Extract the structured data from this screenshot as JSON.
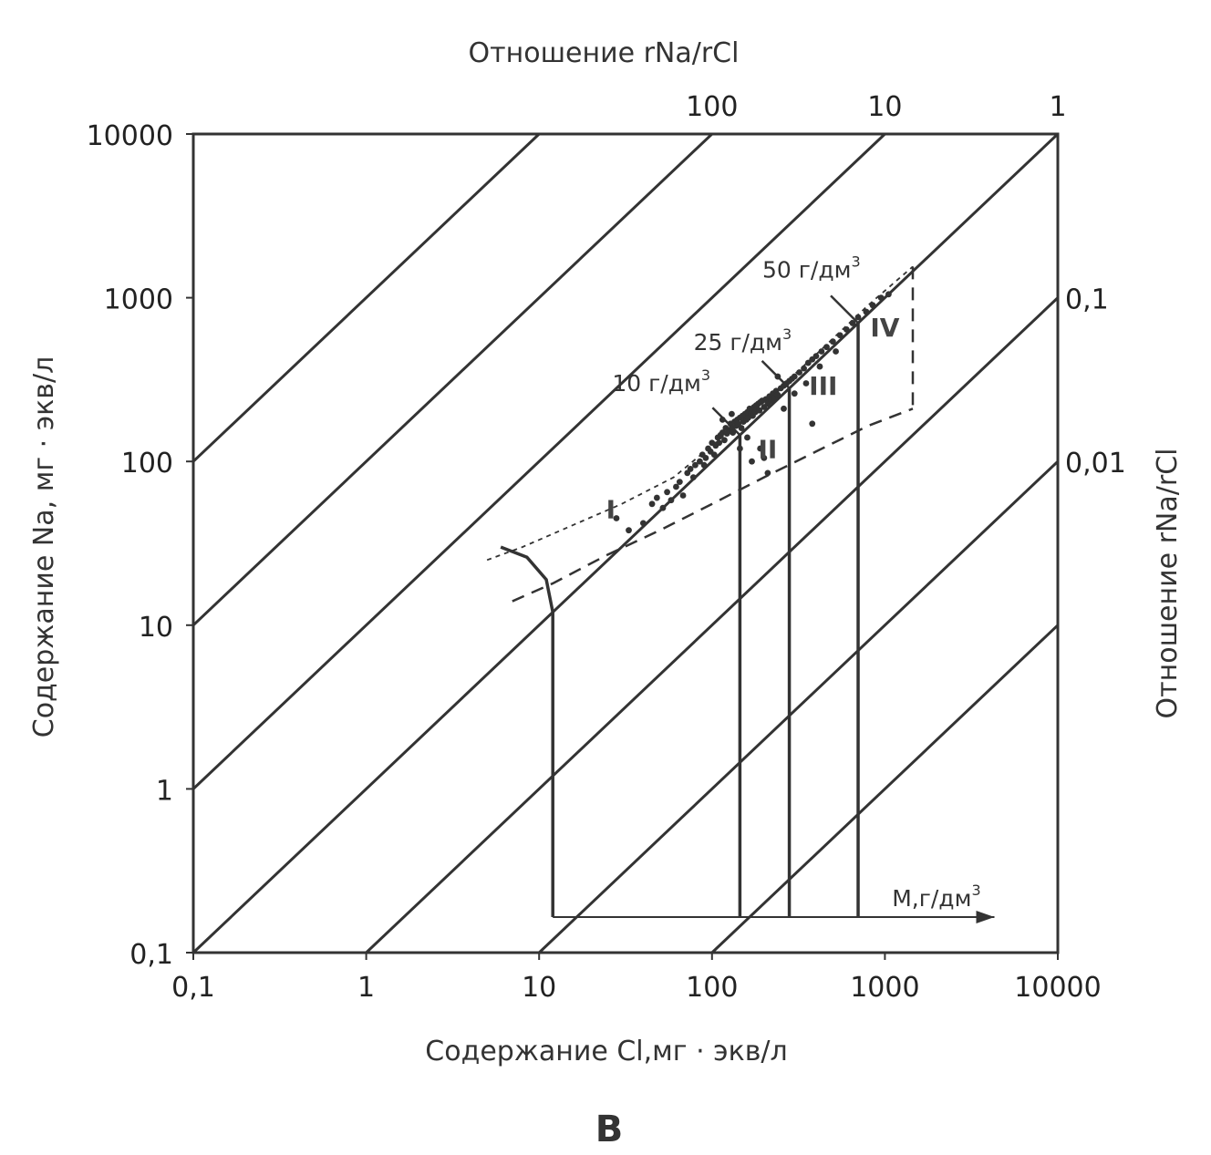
{
  "chart_data": {
    "type": "scatter",
    "xlabel": "Содержание Cl,мг · экв/л",
    "ylabel": "Содержание Na,  мг · экв/л",
    "top_axis_title": "Отношение rNa/rCl",
    "right_axis_title": "Отношение rNa/rCl",
    "x_scale": "log",
    "y_scale": "log",
    "xlim": [
      0.1,
      10000
    ],
    "ylim": [
      0.1,
      10000
    ],
    "x_ticks": [
      "0,1",
      "1",
      "10",
      "100",
      "1000",
      "10000"
    ],
    "x_tick_values": [
      0.1,
      1,
      10,
      100,
      1000,
      10000
    ],
    "y_ticks": [
      "0,1",
      "1",
      "10",
      "100",
      "1000",
      "10000"
    ],
    "y_tick_values": [
      0.1,
      1,
      10,
      100,
      1000,
      10000
    ],
    "ratio_lines": [
      {
        "ratio": 100,
        "label": "100",
        "position": "top"
      },
      {
        "ratio": 10,
        "label": "10",
        "position": "top"
      },
      {
        "ratio": 1,
        "label": "1",
        "position": "top"
      },
      {
        "ratio": 0.1,
        "label": "0,1",
        "position": "right"
      },
      {
        "ratio": 0.01,
        "label": "0,01",
        "position": "right"
      },
      {
        "ratio": 1000,
        "label": "",
        "position": "none"
      },
      {
        "ratio": 0.001,
        "label": "",
        "position": "none"
      }
    ],
    "mineralization_lines": [
      {
        "cl": 145,
        "label": "10 г/дм",
        "sup": "3"
      },
      {
        "cl": 280,
        "label": "25 г/дм",
        "sup": "3"
      },
      {
        "cl": 700,
        "label": "50 г/дм",
        "sup": "3"
      }
    ],
    "m_axis_label": "M,г/дм",
    "m_axis_sup": "3",
    "zones": [
      "I",
      "II",
      "III",
      "IV"
    ],
    "points": [
      [
        28,
        45
      ],
      [
        33,
        38
      ],
      [
        40,
        42
      ],
      [
        45,
        55
      ],
      [
        48,
        60
      ],
      [
        52,
        52
      ],
      [
        55,
        65
      ],
      [
        58,
        58
      ],
      [
        62,
        70
      ],
      [
        65,
        75
      ],
      [
        68,
        62
      ],
      [
        72,
        85
      ],
      [
        75,
        90
      ],
      [
        78,
        80
      ],
      [
        80,
        95
      ],
      [
        85,
        100
      ],
      [
        88,
        110
      ],
      [
        90,
        95
      ],
      [
        92,
        105
      ],
      [
        95,
        120
      ],
      [
        98,
        115
      ],
      [
        100,
        130
      ],
      [
        103,
        110
      ],
      [
        105,
        125
      ],
      [
        108,
        140
      ],
      [
        110,
        130
      ],
      [
        112,
        145
      ],
      [
        115,
        150
      ],
      [
        118,
        135
      ],
      [
        120,
        160
      ],
      [
        122,
        148
      ],
      [
        125,
        155
      ],
      [
        128,
        170
      ],
      [
        130,
        160
      ],
      [
        132,
        150
      ],
      [
        135,
        175
      ],
      [
        138,
        165
      ],
      [
        140,
        180
      ],
      [
        142,
        170
      ],
      [
        145,
        185
      ],
      [
        148,
        160
      ],
      [
        150,
        190
      ],
      [
        152,
        175
      ],
      [
        155,
        195
      ],
      [
        158,
        180
      ],
      [
        160,
        200
      ],
      [
        162,
        185
      ],
      [
        165,
        210
      ],
      [
        168,
        195
      ],
      [
        170,
        205
      ],
      [
        172,
        190
      ],
      [
        175,
        215
      ],
      [
        178,
        200
      ],
      [
        180,
        220
      ],
      [
        182,
        210
      ],
      [
        185,
        225
      ],
      [
        188,
        205
      ],
      [
        190,
        230
      ],
      [
        195,
        235
      ],
      [
        200,
        215
      ],
      [
        205,
        240
      ],
      [
        210,
        225
      ],
      [
        215,
        250
      ],
      [
        220,
        235
      ],
      [
        225,
        260
      ],
      [
        230,
        245
      ],
      [
        235,
        270
      ],
      [
        240,
        255
      ],
      [
        250,
        280
      ],
      [
        260,
        290
      ],
      [
        270,
        300
      ],
      [
        280,
        310
      ],
      [
        290,
        320
      ],
      [
        300,
        330
      ],
      [
        320,
        350
      ],
      [
        340,
        370
      ],
      [
        360,
        400
      ],
      [
        380,
        420
      ],
      [
        400,
        440
      ],
      [
        430,
        470
      ],
      [
        460,
        500
      ],
      [
        500,
        540
      ],
      [
        550,
        590
      ],
      [
        600,
        640
      ],
      [
        650,
        700
      ],
      [
        700,
        760
      ],
      [
        780,
        820
      ],
      [
        850,
        900
      ],
      [
        950,
        1000
      ],
      [
        1050,
        1050
      ],
      [
        190,
        120
      ],
      [
        200,
        105
      ],
      [
        210,
        85
      ],
      [
        170,
        100
      ],
      [
        380,
        170
      ],
      [
        240,
        330
      ],
      [
        130,
        195
      ],
      [
        115,
        180
      ],
      [
        300,
        260
      ],
      [
        260,
        210
      ],
      [
        350,
        300
      ],
      [
        420,
        380
      ],
      [
        520,
        470
      ],
      [
        145,
        120
      ],
      [
        160,
        140
      ]
    ]
  },
  "panel_letter": "В"
}
